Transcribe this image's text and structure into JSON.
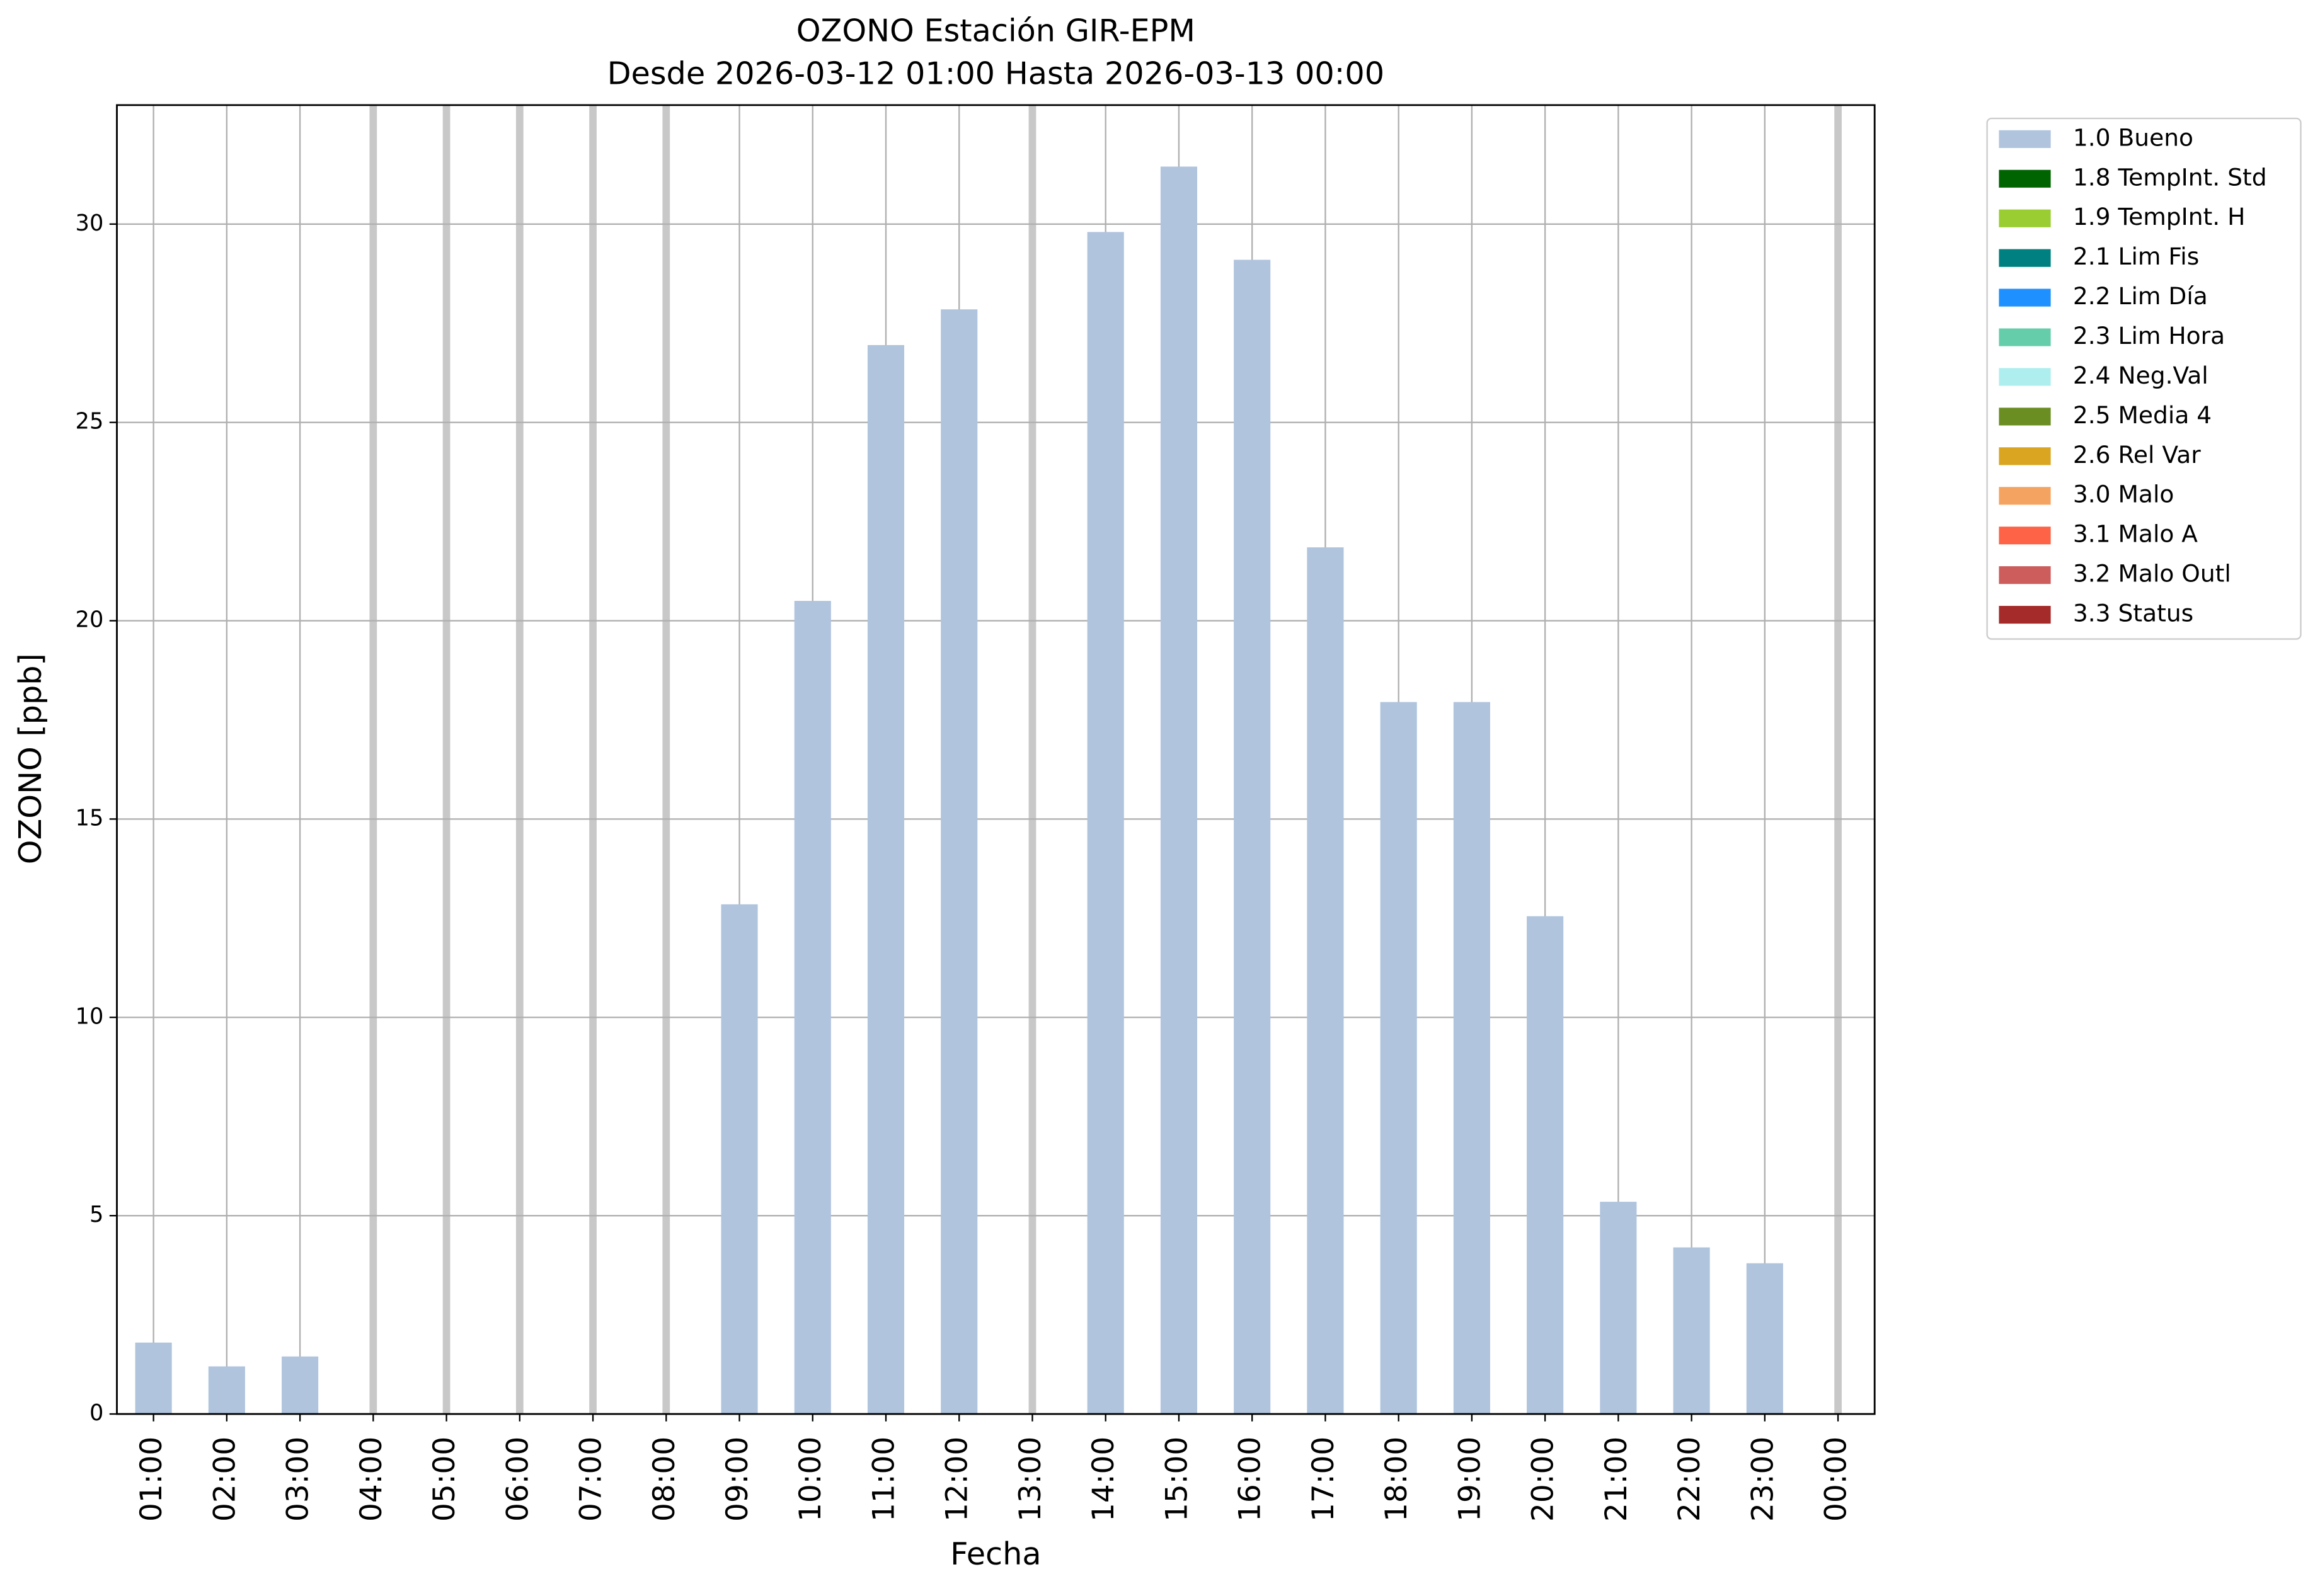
{
  "chart_data": {
    "type": "bar",
    "title": "OZONO Estación GIR-EPM",
    "subtitle": "Desde 2026-03-12 01:00 Hasta 2026-03-13 00:00",
    "x_label": "Fecha",
    "y_label": "OZONO [ppb]",
    "categories": [
      "01:00",
      "02:00",
      "03:00",
      "04:00",
      "05:00",
      "06:00",
      "07:00",
      "08:00",
      "09:00",
      "10:00",
      "11:00",
      "12:00",
      "13:00",
      "14:00",
      "15:00",
      "16:00",
      "17:00",
      "18:00",
      "19:00",
      "20:00",
      "21:00",
      "22:00",
      "23:00",
      "00:00"
    ],
    "series": [
      {
        "name": "1.0 Bueno",
        "color": "#b0c4de",
        "values": [
          1.8,
          1.2,
          1.45,
          null,
          null,
          null,
          null,
          null,
          12.85,
          20.5,
          26.95,
          27.85,
          null,
          29.8,
          31.45,
          29.1,
          21.85,
          17.95,
          17.95,
          12.55,
          5.35,
          4.2,
          3.8,
          null
        ]
      },
      {
        "name": "1.8 TempInt. Std",
        "color": "#006400"
      },
      {
        "name": "1.9 TempInt. H",
        "color": "#9acd32"
      },
      {
        "name": "2.1 Lim Fis",
        "color": "#008080"
      },
      {
        "name": "2.2 Lim Día",
        "color": "#1e90ff"
      },
      {
        "name": "2.3 Lim Hora",
        "color": "#66cdaa"
      },
      {
        "name": "2.4 Neg.Val",
        "color": "#afeeee"
      },
      {
        "name": "2.5 Media 4",
        "color": "#6b8e23"
      },
      {
        "name": "2.6 Rel Var",
        "color": "#daa520"
      },
      {
        "name": "3.0 Malo",
        "color": "#f4a460"
      },
      {
        "name": "3.1 Malo A",
        "color": "#ff6347"
      },
      {
        "name": "3.2 Malo Outl",
        "color": "#cd5c5c"
      },
      {
        "name": "3.3 Status",
        "color": "#a52a2a"
      }
    ],
    "ylim": [
      0,
      33
    ],
    "yticks": [
      0,
      5,
      10,
      15,
      20,
      25,
      30
    ],
    "grid": true,
    "legend": "outside-upper-right"
  }
}
